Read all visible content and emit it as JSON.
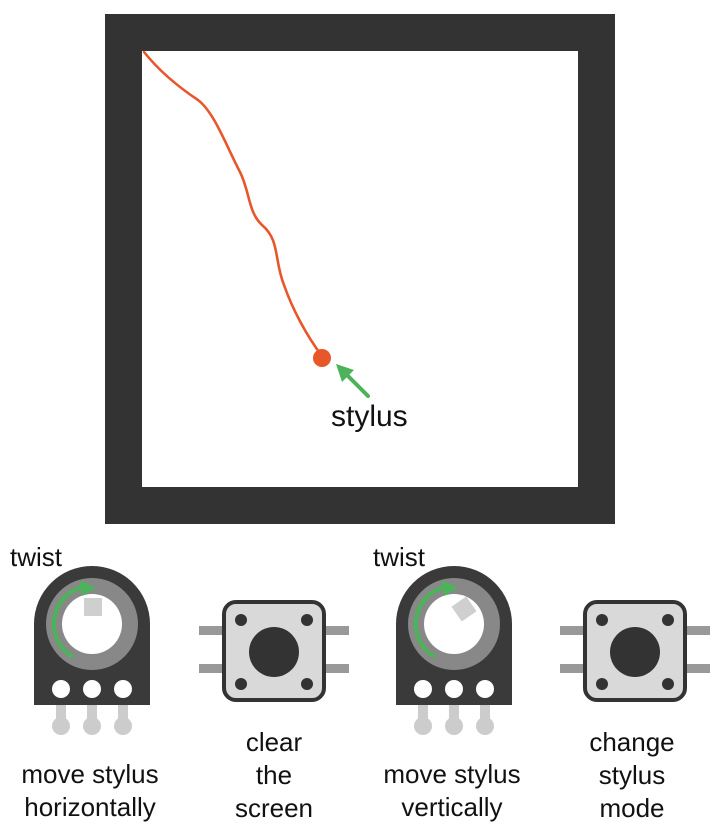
{
  "screen": {
    "stylus_label": "stylus",
    "trace_color": "#e8572a",
    "frame_color": "#333333",
    "arrow_color": "#4cb35a"
  },
  "controls": [
    {
      "type": "potentiometer",
      "hint": "twist",
      "label_lines": [
        "move stylus",
        "horizontally"
      ]
    },
    {
      "type": "button",
      "label_lines": [
        "clear",
        "the",
        "screen"
      ]
    },
    {
      "type": "potentiometer",
      "hint": "twist",
      "label_lines": [
        "move stylus",
        "vertically"
      ]
    },
    {
      "type": "button",
      "label_lines": [
        "change",
        "stylus",
        "mode"
      ]
    }
  ],
  "colors": {
    "pot_body": "#3a3a3a",
    "pot_ring": "#888888",
    "button_body": "#d9d9d9",
    "button_outline": "#333333",
    "pin": "#999999",
    "light_pin": "#cccccc"
  }
}
